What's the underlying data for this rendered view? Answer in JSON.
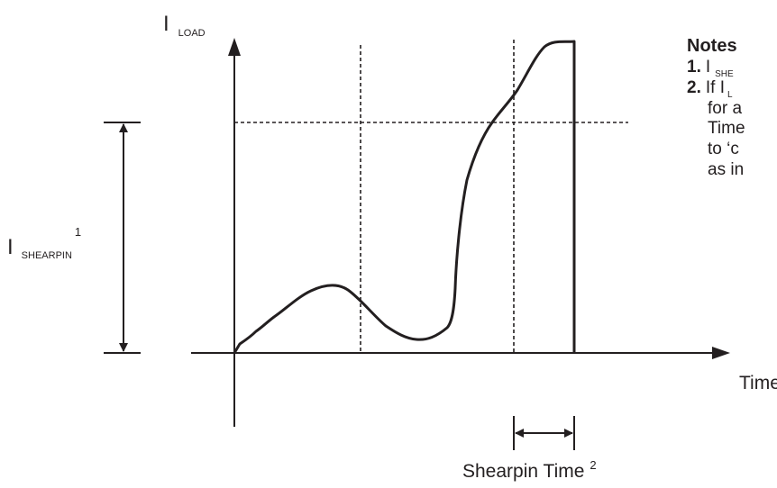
{
  "axes": {
    "y_label_main": "I",
    "y_label_sub": "LOAD",
    "x_label": "Time"
  },
  "shearpin_current": {
    "label_main": "I",
    "label_sub": "SHEARPIN",
    "label_sup": "1"
  },
  "shearpin_time": {
    "label": "Shearpin Time",
    "label_sup": "2"
  },
  "notes": {
    "heading": "Notes",
    "item1_number": "1.",
    "item1_visible": "I",
    "item1_sub": "SHE",
    "item2_number": "2.",
    "item2_line1_main": "If I",
    "item2_line1_sub": "L",
    "item2_line2": "for a",
    "item2_line3": "Time",
    "item2_line4": "to ‘c",
    "item2_line5": "as in"
  },
  "colors": {
    "ink": "#231f20",
    "background": "#ffffff"
  }
}
